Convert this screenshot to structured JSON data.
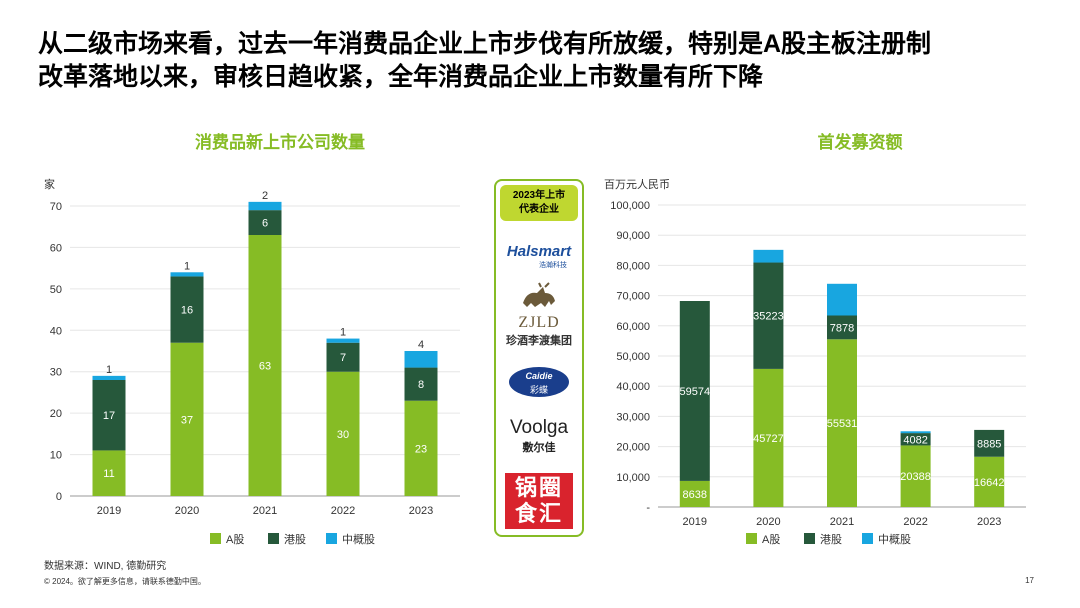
{
  "headline": {
    "line1": "从二级市场来看，过去一年消费品企业上市步伐有所放缓，特别是A股主板注册制",
    "line2": "改革落地以来，审核日趋收紧，全年消费品企业上市数量有所下降"
  },
  "colors": {
    "a_share": "#86BC25",
    "hk": "#26583B",
    "china_concept": "#18A6E0",
    "title_green": "#86BC25"
  },
  "chart_data": [
    {
      "type": "bar",
      "stacked": true,
      "title": "消费品新上市公司数量",
      "ylabel": "家",
      "ylim": [
        0,
        70
      ],
      "yticks": [
        0,
        10,
        20,
        30,
        40,
        50,
        60,
        70
      ],
      "ytick_labels": [
        "0",
        "10",
        "20",
        "30",
        "40",
        "50",
        "60",
        "70"
      ],
      "categories": [
        "2019",
        "2020",
        "2021",
        "2022",
        "2023"
      ],
      "series": [
        {
          "name": "A股",
          "values": [
            11,
            37,
            63,
            30,
            23
          ]
        },
        {
          "name": "港股",
          "values": [
            17,
            16,
            6,
            7,
            8
          ]
        },
        {
          "name": "中概股",
          "values": [
            1,
            1,
            2,
            1,
            4
          ]
        }
      ],
      "data_labels": [
        [
          "11",
          "37",
          "63",
          "30",
          "23"
        ],
        [
          "17",
          "16",
          "6",
          "7",
          "8"
        ],
        [
          "1",
          "1",
          "2",
          "1",
          "4"
        ]
      ],
      "grid": true,
      "legend": "bottom"
    },
    {
      "type": "bar",
      "stacked": true,
      "title": "首发募资额",
      "ylabel": "百万元人民币",
      "ylim": [
        0,
        100000
      ],
      "yticks": [
        0,
        10000,
        20000,
        30000,
        40000,
        50000,
        60000,
        70000,
        80000,
        90000,
        100000
      ],
      "ytick_labels": [
        "-",
        "10,000",
        "20,000",
        "30,000",
        "40,000",
        "50,000",
        "60,000",
        "70,000",
        "80,000",
        "90,000",
        "100,000"
      ],
      "categories": [
        "2019",
        "2020",
        "2021",
        "2022",
        "2023"
      ],
      "series": [
        {
          "name": "A股",
          "values": [
            8638,
            45727,
            55531,
            20388,
            16642
          ]
        },
        {
          "name": "港股",
          "values": [
            59574,
            35223,
            7878,
            4082,
            8885
          ]
        },
        {
          "name": "中概股",
          "values": [
            0,
            4200,
            10500,
            600,
            0
          ]
        }
      ],
      "data_labels": [
        [
          "8638",
          "45727",
          "55531",
          "20388",
          "16642"
        ],
        [
          "59574",
          "35223",
          "7878",
          "4082",
          "8885"
        ],
        [
          "",
          "",
          "",
          "",
          ""
        ]
      ],
      "grid": true,
      "legend": "bottom"
    }
  ],
  "logos": {
    "header": "2023年上市代表企业",
    "header_line1": "2023年上市",
    "header_line2": "代表企业",
    "halsmart": "Halsmart",
    "halsmart_sub": "浩瀚科技",
    "zjld": "ZJLD",
    "zjld_cn": "珍酒李渡集团",
    "caidie": "Caidie",
    "caidie_cn": "彩蝶",
    "voolga": "Voolga",
    "voolga_cn": "敷尔佳",
    "guoquan": "锅圈食汇"
  },
  "footer": {
    "source": "数据来源：WIND, 德勤研究",
    "copyright": "© 2024。欲了解更多信息，请联系德勤中国。",
    "page": "17"
  }
}
